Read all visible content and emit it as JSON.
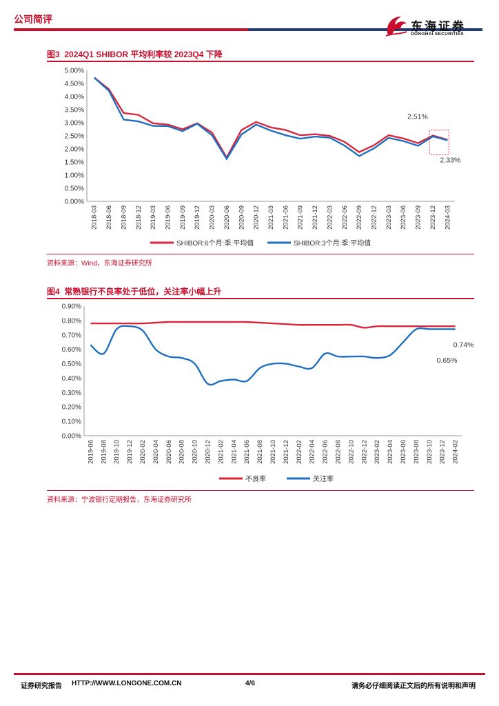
{
  "header": {
    "section_label": "公司简评",
    "logo_cn": "东海证券",
    "logo_en": "DONGHAI SECURITIES"
  },
  "figures": [
    {
      "label": "图3",
      "title": "2024Q1 SHIBOR 平均利率较 2023Q4 下降",
      "source": "资料来源：Wind，东海证券研究所"
    },
    {
      "label": "图4",
      "title": "常熟银行不良率处于低位，关注率小幅上升",
      "source": "资料来源：宁波银行定期报告，东海证券研究所"
    }
  ],
  "chart_data": [
    {
      "type": "line",
      "categories": [
        "2018-03",
        "2018-06",
        "2018-09",
        "2018-12",
        "2019-03",
        "2019-06",
        "2019-09",
        "2019-12",
        "2020-03",
        "2020-06",
        "2020-09",
        "2020-12",
        "2021-03",
        "2021-06",
        "2021-09",
        "2021-12",
        "2022-03",
        "2022-06",
        "2022-09",
        "2022-12",
        "2023-03",
        "2023-06",
        "2023-09",
        "2023-12",
        "2024-03"
      ],
      "series": [
        {
          "name": "SHIBOR:6个月:季:平均值",
          "color": "#d7263d",
          "values": [
            4.72,
            4.28,
            3.37,
            3.3,
            2.98,
            2.93,
            2.75,
            2.98,
            2.62,
            1.67,
            2.72,
            3.03,
            2.82,
            2.72,
            2.52,
            2.56,
            2.5,
            2.27,
            1.88,
            2.14,
            2.52,
            2.4,
            2.22,
            2.51,
            2.35
          ]
        },
        {
          "name": "SHIBOR:3个月:季:平均值",
          "color": "#1f6fbf",
          "values": [
            4.72,
            4.22,
            3.12,
            3.05,
            2.88,
            2.87,
            2.68,
            2.96,
            2.52,
            1.62,
            2.55,
            2.93,
            2.7,
            2.52,
            2.39,
            2.47,
            2.43,
            2.13,
            1.73,
            2.02,
            2.42,
            2.3,
            2.12,
            2.48,
            2.33
          ]
        }
      ],
      "ylim": [
        0,
        5
      ],
      "yticks": [
        "0.00%",
        "0.50%",
        "1.00%",
        "1.50%",
        "2.00%",
        "2.50%",
        "3.00%",
        "3.50%",
        "4.00%",
        "4.50%",
        "5.00%"
      ],
      "annotations": [
        "2.51%",
        "2.33%"
      ],
      "legend": "bottom"
    },
    {
      "type": "line",
      "categories": [
        "2019-06",
        "2019-08",
        "2019-10",
        "2019-12",
        "2020-02",
        "2020-04",
        "2020-06",
        "2020-08",
        "2020-10",
        "2020-12",
        "2021-02",
        "2021-04",
        "2021-06",
        "2021-08",
        "2021-10",
        "2021-12",
        "2022-02",
        "2022-04",
        "2022-06",
        "2022-08",
        "2022-10",
        "2022-12",
        "2023-02",
        "2023-04",
        "2023-06",
        "2023-08",
        "2023-10",
        "2023-12",
        "2024-02"
      ],
      "series": [
        {
          "name": "不良率",
          "color": "#d7263d",
          "values": [
            0.78,
            0.78,
            0.78,
            0.78,
            0.78,
            0.785,
            0.79,
            0.79,
            0.79,
            0.79,
            0.79,
            0.79,
            0.79,
            0.785,
            0.78,
            0.775,
            0.77,
            0.77,
            0.77,
            0.77,
            0.77,
            0.75,
            0.76,
            0.76,
            0.76,
            0.76,
            0.76,
            0.76,
            0.76
          ]
        },
        {
          "name": "关注率",
          "color": "#1f6fbf",
          "values": [
            0.63,
            0.57,
            0.74,
            0.76,
            0.73,
            0.6,
            0.55,
            0.54,
            0.5,
            0.36,
            0.38,
            0.39,
            0.38,
            0.47,
            0.5,
            0.5,
            0.48,
            0.47,
            0.57,
            0.55,
            0.55,
            0.55,
            0.54,
            0.56,
            0.65,
            0.74,
            0.74,
            0.74,
            0.74
          ]
        }
      ],
      "ylim": [
        0,
        0.9
      ],
      "yticks": [
        "0.00%",
        "0.10%",
        "0.20%",
        "0.30%",
        "0.40%",
        "0.50%",
        "0.60%",
        "0.70%",
        "0.80%",
        "0.90%"
      ],
      "annotations": [
        "0.74%",
        "0.65%"
      ],
      "legend": "bottom"
    }
  ],
  "footer": {
    "left": "证券研究报告",
    "url": "HTTP://WWW.LONGONE.COM.CN",
    "page": "4/6",
    "disclaimer": "请务必仔细阅读正文后的所有说明和声明"
  }
}
